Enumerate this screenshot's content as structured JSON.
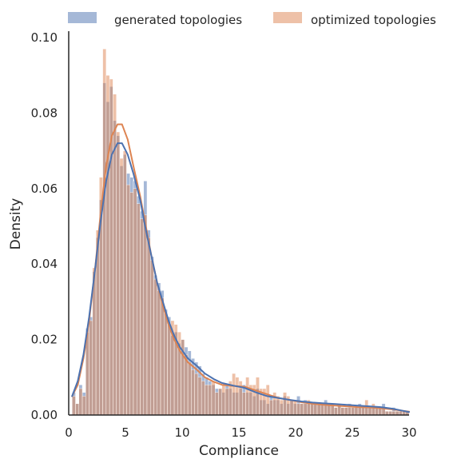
{
  "chart_data": {
    "type": "histogram",
    "title": "",
    "xlabel": "Compliance",
    "ylabel": "Density",
    "xlim": [
      0,
      30
    ],
    "ylim": [
      0,
      0.1
    ],
    "xticks": [
      0,
      5,
      10,
      15,
      20,
      25,
      30
    ],
    "yticks": [
      0.0,
      0.02,
      0.04,
      0.06,
      0.08,
      0.1
    ],
    "xtick_labels": [
      "0",
      "5",
      "10",
      "15",
      "20",
      "25",
      "30"
    ],
    "ytick_labels": [
      "0.00",
      "0.02",
      "0.04",
      "0.06",
      "0.08",
      "0.10"
    ],
    "grid": false,
    "legend_position": "top",
    "bin_start": 0.3,
    "bin_width": 0.3,
    "series": [
      {
        "name": "generated topologies",
        "color": "#4c72b0",
        "density": [
          0.006,
          0.003,
          0.008,
          0.006,
          0.023,
          0.026,
          0.038,
          0.047,
          0.057,
          0.088,
          0.083,
          0.087,
          0.078,
          0.074,
          0.066,
          0.069,
          0.064,
          0.063,
          0.062,
          0.058,
          0.054,
          0.062,
          0.049,
          0.042,
          0.037,
          0.035,
          0.033,
          0.028,
          0.026,
          0.021,
          0.022,
          0.019,
          0.02,
          0.018,
          0.017,
          0.015,
          0.014,
          0.013,
          0.011,
          0.01,
          0.009,
          0.008,
          0.007,
          0.007,
          0.006,
          0.008,
          0.007,
          0.006,
          0.006,
          0.007,
          0.008,
          0.006,
          0.006,
          0.005,
          0.007,
          0.004,
          0.004,
          0.003,
          0.005,
          0.004,
          0.004,
          0.003,
          0.005,
          0.003,
          0.004,
          0.003,
          0.005,
          0.003,
          0.004,
          0.003,
          0.003,
          0.003,
          0.003,
          0.003,
          0.004,
          0.003,
          0.003,
          0.002,
          0.003,
          0.002,
          0.002,
          0.003,
          0.002,
          0.002,
          0.003,
          0.002,
          0.002,
          0.002,
          0.002,
          0.002,
          0.002,
          0.003,
          0.001,
          0.001,
          0.002,
          0.001,
          0.001,
          0.001,
          0.001
        ],
        "kde": [
          [
            0.3,
            0.005
          ],
          [
            0.8,
            0.009
          ],
          [
            1.3,
            0.016
          ],
          [
            1.8,
            0.026
          ],
          [
            2.3,
            0.038
          ],
          [
            2.8,
            0.051
          ],
          [
            3.3,
            0.062
          ],
          [
            3.8,
            0.069
          ],
          [
            4.3,
            0.072
          ],
          [
            4.7,
            0.072
          ],
          [
            5.2,
            0.069
          ],
          [
            5.7,
            0.064
          ],
          [
            6.3,
            0.057
          ],
          [
            6.8,
            0.049
          ],
          [
            7.3,
            0.042
          ],
          [
            7.8,
            0.035
          ],
          [
            8.3,
            0.03
          ],
          [
            8.8,
            0.025
          ],
          [
            9.3,
            0.021
          ],
          [
            9.8,
            0.018
          ],
          [
            10.5,
            0.015
          ],
          [
            11.3,
            0.013
          ],
          [
            12.0,
            0.011
          ],
          [
            12.8,
            0.0095
          ],
          [
            13.5,
            0.0085
          ],
          [
            14.5,
            0.0078
          ],
          [
            15.5,
            0.0072
          ],
          [
            16.5,
            0.006
          ],
          [
            17.5,
            0.005
          ],
          [
            18.5,
            0.0045
          ],
          [
            19.5,
            0.004
          ],
          [
            20.5,
            0.0036
          ],
          [
            21.5,
            0.0033
          ],
          [
            22.5,
            0.0031
          ],
          [
            23.5,
            0.0029
          ],
          [
            24.5,
            0.0027
          ],
          [
            25.5,
            0.0025
          ],
          [
            26.5,
            0.0023
          ],
          [
            27.5,
            0.0021
          ],
          [
            28.5,
            0.0017
          ],
          [
            29.5,
            0.0011
          ],
          [
            30,
            0.0008
          ]
        ]
      },
      {
        "name": "optimized topologies",
        "color": "#dd8452",
        "density": [
          0.005,
          0.003,
          0.007,
          0.005,
          0.022,
          0.025,
          0.039,
          0.049,
          0.063,
          0.097,
          0.09,
          0.089,
          0.085,
          0.075,
          0.068,
          0.07,
          0.061,
          0.059,
          0.06,
          0.056,
          0.052,
          0.053,
          0.047,
          0.041,
          0.036,
          0.033,
          0.031,
          0.027,
          0.024,
          0.025,
          0.024,
          0.022,
          0.02,
          0.016,
          0.014,
          0.012,
          0.011,
          0.01,
          0.009,
          0.008,
          0.008,
          0.009,
          0.006,
          0.007,
          0.008,
          0.007,
          0.009,
          0.011,
          0.01,
          0.009,
          0.006,
          0.01,
          0.008,
          0.008,
          0.01,
          0.007,
          0.007,
          0.008,
          0.004,
          0.006,
          0.005,
          0.004,
          0.006,
          0.005,
          0.004,
          0.004,
          0.003,
          0.003,
          0.003,
          0.004,
          0.003,
          0.003,
          0.003,
          0.003,
          0.003,
          0.003,
          0.003,
          0.002,
          0.003,
          0.002,
          0.002,
          0.002,
          0.002,
          0.002,
          0.002,
          0.002,
          0.004,
          0.002,
          0.003,
          0.002,
          0.002,
          0.002,
          0.001,
          0.001,
          0.001,
          0.001,
          0.001,
          0.001,
          0.001
        ],
        "kde": [
          [
            0.3,
            0.005
          ],
          [
            0.8,
            0.008
          ],
          [
            1.3,
            0.015
          ],
          [
            1.8,
            0.025
          ],
          [
            2.3,
            0.038
          ],
          [
            2.8,
            0.053
          ],
          [
            3.3,
            0.066
          ],
          [
            3.8,
            0.074
          ],
          [
            4.3,
            0.077
          ],
          [
            4.7,
            0.077
          ],
          [
            5.2,
            0.073
          ],
          [
            5.7,
            0.066
          ],
          [
            6.3,
            0.058
          ],
          [
            6.8,
            0.05
          ],
          [
            7.3,
            0.042
          ],
          [
            7.8,
            0.035
          ],
          [
            8.3,
            0.029
          ],
          [
            8.8,
            0.024
          ],
          [
            9.3,
            0.02
          ],
          [
            9.8,
            0.017
          ],
          [
            10.5,
            0.014
          ],
          [
            11.3,
            0.012
          ],
          [
            12.0,
            0.01
          ],
          [
            12.8,
            0.0088
          ],
          [
            13.5,
            0.008
          ],
          [
            14.5,
            0.0077
          ],
          [
            15.5,
            0.0075
          ],
          [
            16.5,
            0.0065
          ],
          [
            17.5,
            0.0055
          ],
          [
            18.5,
            0.0045
          ],
          [
            19.5,
            0.004
          ],
          [
            20.5,
            0.0034
          ],
          [
            21.5,
            0.003
          ],
          [
            22.5,
            0.0027
          ],
          [
            23.5,
            0.0025
          ],
          [
            24.5,
            0.0023
          ],
          [
            25.5,
            0.0021
          ],
          [
            26.5,
            0.002
          ],
          [
            27.5,
            0.0018
          ],
          [
            28.5,
            0.0015
          ],
          [
            29.5,
            0.0011
          ],
          [
            30,
            0.0009
          ]
        ]
      }
    ]
  }
}
